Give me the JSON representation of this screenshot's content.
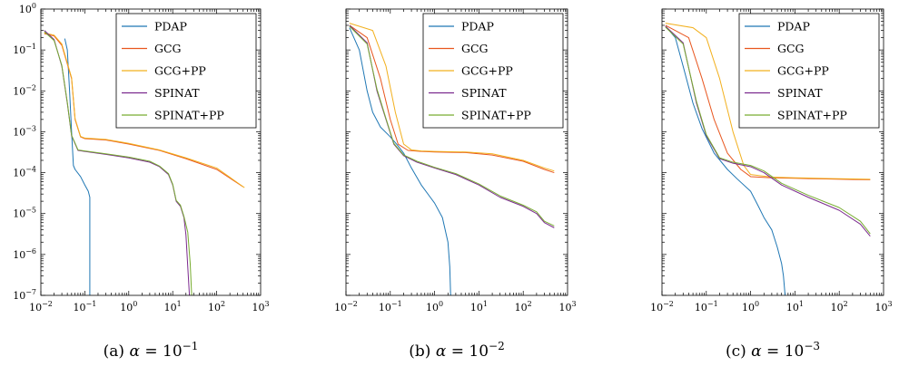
{
  "chart_data": [
    {
      "type": "line",
      "caption": "(a) α = 10⁻¹",
      "caption_parts": [
        "(a) ",
        "α",
        " = 10",
        "−1"
      ],
      "xscale": "log",
      "yscale": "log",
      "xlim": [
        0.01,
        1000
      ],
      "ylim": [
        1e-07,
        1
      ],
      "xticks": [
        {
          "base": "10",
          "exp": "−2"
        },
        {
          "base": "10",
          "exp": "−1"
        },
        {
          "base": "10",
          "exp": "0"
        },
        {
          "base": "10",
          "exp": "1"
        },
        {
          "base": "10",
          "exp": "2"
        },
        {
          "base": "10",
          "exp": "3"
        }
      ],
      "yticks": [
        {
          "base": "10",
          "exp": "0"
        },
        {
          "base": "10",
          "exp": "−1"
        },
        {
          "base": "10",
          "exp": "−2"
        },
        {
          "base": "10",
          "exp": "−3"
        },
        {
          "base": "10",
          "exp": "−4"
        },
        {
          "base": "10",
          "exp": "−5"
        },
        {
          "base": "10",
          "exp": "−6"
        },
        {
          "base": "10",
          "exp": "−7"
        }
      ],
      "legend_position": "top-right",
      "series": [
        {
          "name": "PDAP",
          "color": "#1f77b4",
          "points": [
            [
              0.035,
              0.19
            ],
            [
              0.04,
              0.1
            ],
            [
              0.045,
              0.01
            ],
            [
              0.05,
              0.001
            ],
            [
              0.055,
              0.00015
            ],
            [
              0.06,
              0.00012
            ],
            [
              0.08,
              8e-05
            ],
            [
              0.1,
              5e-05
            ],
            [
              0.12,
              3.5e-05
            ],
            [
              0.13,
              2.5e-05
            ],
            [
              0.13,
              1e-07
            ]
          ]
        },
        {
          "name": "GCG",
          "color": "#e8561f",
          "points": [
            [
              0.012,
              0.25
            ],
            [
              0.02,
              0.22
            ],
            [
              0.03,
              0.13
            ],
            [
              0.05,
              0.02
            ],
            [
              0.06,
              0.002
            ],
            [
              0.08,
              0.00075
            ],
            [
              0.1,
              0.00068
            ],
            [
              0.3,
              0.00063
            ],
            [
              1,
              0.0005
            ],
            [
              5,
              0.00035
            ],
            [
              20,
              0.00022
            ],
            [
              100,
              0.00012
            ],
            [
              400,
              4.5e-05
            ]
          ]
        },
        {
          "name": "GCG+PP",
          "color": "#f2b01e",
          "points": [
            [
              0.012,
              0.26
            ],
            [
              0.02,
              0.23
            ],
            [
              0.03,
              0.14
            ],
            [
              0.05,
              0.021
            ],
            [
              0.06,
              0.0021
            ],
            [
              0.08,
              0.00077
            ],
            [
              0.1,
              0.0007
            ],
            [
              0.3,
              0.00065
            ],
            [
              1,
              0.00052
            ],
            [
              5,
              0.00036
            ],
            [
              20,
              0.00023
            ],
            [
              100,
              0.00013
            ],
            [
              430,
              4.3e-05
            ]
          ]
        },
        {
          "name": "SPINAT",
          "color": "#7b2a8e",
          "points": [
            [
              0.012,
              0.3
            ],
            [
              0.02,
              0.18
            ],
            [
              0.03,
              0.04
            ],
            [
              0.04,
              0.005
            ],
            [
              0.05,
              0.0008
            ],
            [
              0.07,
              0.00035
            ],
            [
              0.1,
              0.00033
            ],
            [
              0.3,
              0.00028
            ],
            [
              1,
              0.00023
            ],
            [
              3,
              0.00018
            ],
            [
              5,
              0.00014
            ],
            [
              8,
              9e-05
            ],
            [
              10,
              5e-05
            ],
            [
              12,
              2e-05
            ],
            [
              15,
              1.5e-05
            ],
            [
              18,
              8e-06
            ],
            [
              20,
              3e-06
            ],
            [
              22,
              5e-07
            ],
            [
              24,
              1e-07
            ]
          ]
        },
        {
          "name": "SPINAT+PP",
          "color": "#77ac30",
          "points": [
            [
              0.012,
              0.28
            ],
            [
              0.02,
              0.17
            ],
            [
              0.03,
              0.042
            ],
            [
              0.04,
              0.0052
            ],
            [
              0.05,
              0.00082
            ],
            [
              0.07,
              0.00036
            ],
            [
              0.1,
              0.00034
            ],
            [
              0.3,
              0.00029
            ],
            [
              1,
              0.00024
            ],
            [
              3,
              0.00019
            ],
            [
              5,
              0.000145
            ],
            [
              8,
              9.5e-05
            ],
            [
              10,
              5.2e-05
            ],
            [
              12,
              2.1e-05
            ],
            [
              15,
              1.6e-05
            ],
            [
              18,
              8.5e-06
            ],
            [
              22,
              3.5e-06
            ],
            [
              25,
              6e-07
            ],
            [
              27,
              1e-07
            ]
          ]
        }
      ]
    },
    {
      "type": "line",
      "caption": "(b) α = 10⁻²",
      "caption_parts": [
        "(b) ",
        "α",
        " = 10",
        "−2"
      ],
      "xscale": "log",
      "yscale": "log",
      "xlim": [
        0.01,
        1000
      ],
      "ylim": [
        1e-07,
        1
      ],
      "xticks": [
        {
          "base": "10",
          "exp": "−2"
        },
        {
          "base": "10",
          "exp": "−1"
        },
        {
          "base": "10",
          "exp": "0"
        },
        {
          "base": "10",
          "exp": "1"
        },
        {
          "base": "10",
          "exp": "2"
        },
        {
          "base": "10",
          "exp": "3"
        }
      ],
      "yticks": [],
      "legend_position": "top-right",
      "series": [
        {
          "name": "PDAP",
          "color": "#1f77b4",
          "points": [
            [
              0.012,
              0.35
            ],
            [
              0.02,
              0.1
            ],
            [
              0.03,
              0.01
            ],
            [
              0.04,
              0.003
            ],
            [
              0.06,
              0.0013
            ],
            [
              0.1,
              0.00075
            ],
            [
              0.15,
              0.00045
            ],
            [
              0.2,
              0.0003
            ],
            [
              0.3,
              0.00013
            ],
            [
              0.5,
              5e-05
            ],
            [
              0.8,
              2.5e-05
            ],
            [
              1,
              1.8e-05
            ],
            [
              1.5,
              8e-06
            ],
            [
              2,
              2e-06
            ],
            [
              2.2,
              5e-07
            ],
            [
              2.3,
              1e-07
            ]
          ]
        },
        {
          "name": "GCG",
          "color": "#e8561f",
          "points": [
            [
              0.012,
              0.4
            ],
            [
              0.03,
              0.2
            ],
            [
              0.06,
              0.02
            ],
            [
              0.1,
              0.002
            ],
            [
              0.15,
              0.0005
            ],
            [
              0.25,
              0.00035
            ],
            [
              0.5,
              0.00033
            ],
            [
              1,
              0.00032
            ],
            [
              5,
              0.00031
            ],
            [
              20,
              0.00027
            ],
            [
              100,
              0.00019
            ],
            [
              300,
              0.00012
            ],
            [
              500,
              0.0001
            ]
          ]
        },
        {
          "name": "GCG+PP",
          "color": "#f2b01e",
          "points": [
            [
              0.012,
              0.45
            ],
            [
              0.04,
              0.3
            ],
            [
              0.08,
              0.04
            ],
            [
              0.13,
              0.003
            ],
            [
              0.2,
              0.0005
            ],
            [
              0.3,
              0.00036
            ],
            [
              0.5,
              0.00034
            ],
            [
              1,
              0.00033
            ],
            [
              5,
              0.00032
            ],
            [
              20,
              0.00029
            ],
            [
              100,
              0.0002
            ],
            [
              300,
              0.00013
            ],
            [
              500,
              0.00011
            ]
          ]
        },
        {
          "name": "SPINAT",
          "color": "#7b2a8e",
          "points": [
            [
              0.012,
              0.4
            ],
            [
              0.03,
              0.15
            ],
            [
              0.05,
              0.01
            ],
            [
              0.08,
              0.002
            ],
            [
              0.12,
              0.0005
            ],
            [
              0.2,
              0.00026
            ],
            [
              0.4,
              0.00018
            ],
            [
              1,
              0.00013
            ],
            [
              3,
              9e-05
            ],
            [
              10,
              5e-05
            ],
            [
              30,
              2.5e-05
            ],
            [
              100,
              1.5e-05
            ],
            [
              200,
              1e-05
            ],
            [
              300,
              6e-06
            ],
            [
              500,
              4.5e-06
            ]
          ]
        },
        {
          "name": "SPINAT+PP",
          "color": "#77ac30",
          "points": [
            [
              0.012,
              0.38
            ],
            [
              0.03,
              0.14
            ],
            [
              0.05,
              0.011
            ],
            [
              0.08,
              0.0021
            ],
            [
              0.12,
              0.00052
            ],
            [
              0.2,
              0.00027
            ],
            [
              0.4,
              0.00019
            ],
            [
              1,
              0.000135
            ],
            [
              3,
              9.5e-05
            ],
            [
              10,
              5.3e-05
            ],
            [
              30,
              2.7e-05
            ],
            [
              100,
              1.6e-05
            ],
            [
              200,
              1.1e-05
            ],
            [
              300,
              6.5e-06
            ],
            [
              500,
              5e-06
            ]
          ]
        }
      ]
    },
    {
      "type": "line",
      "caption": "(c) α = 10⁻³",
      "caption_parts": [
        "(c) ",
        "α",
        " = 10",
        "−3"
      ],
      "xscale": "log",
      "yscale": "log",
      "xlim": [
        0.01,
        1000
      ],
      "ylim": [
        1e-07,
        1
      ],
      "xticks": [
        {
          "base": "10",
          "exp": "−2"
        },
        {
          "base": "10",
          "exp": "−1"
        },
        {
          "base": "10",
          "exp": "0"
        },
        {
          "base": "10",
          "exp": "1"
        },
        {
          "base": "10",
          "exp": "2"
        },
        {
          "base": "10",
          "exp": "3"
        }
      ],
      "yticks": [],
      "legend_position": "top-right",
      "series": [
        {
          "name": "PDAP",
          "color": "#1f77b4",
          "points": [
            [
              0.012,
              0.38
            ],
            [
              0.02,
              0.2
            ],
            [
              0.03,
              0.04
            ],
            [
              0.05,
              0.005
            ],
            [
              0.08,
              0.0012
            ],
            [
              0.15,
              0.0003
            ],
            [
              0.3,
              0.00012
            ],
            [
              0.5,
              7e-05
            ],
            [
              1,
              3.5e-05
            ],
            [
              1.5,
              1.5e-05
            ],
            [
              2,
              8e-06
            ],
            [
              3,
              4e-06
            ],
            [
              4,
              1.5e-06
            ],
            [
              5,
              6e-07
            ],
            [
              5.5,
              3e-07
            ],
            [
              6,
              1e-07
            ]
          ]
        },
        {
          "name": "GCG",
          "color": "#e8561f",
          "points": [
            [
              0.012,
              0.4
            ],
            [
              0.04,
              0.2
            ],
            [
              0.08,
              0.02
            ],
            [
              0.15,
              0.002
            ],
            [
              0.3,
              0.0003
            ],
            [
              0.6,
              0.00012
            ],
            [
              1,
              8e-05
            ],
            [
              3,
              7.5e-05
            ],
            [
              10,
              7.3e-05
            ],
            [
              50,
              7e-05
            ],
            [
              200,
              6.8e-05
            ],
            [
              500,
              6.7e-05
            ]
          ]
        },
        {
          "name": "GCG+PP",
          "color": "#f2b01e",
          "points": [
            [
              0.012,
              0.45
            ],
            [
              0.05,
              0.35
            ],
            [
              0.1,
              0.2
            ],
            [
              0.2,
              0.02
            ],
            [
              0.4,
              0.001
            ],
            [
              0.7,
              0.00015
            ],
            [
              1,
              9e-05
            ],
            [
              3,
              7.8e-05
            ],
            [
              10,
              7.5e-05
            ],
            [
              50,
              7.2e-05
            ],
            [
              200,
              7e-05
            ],
            [
              500,
              6.9e-05
            ]
          ]
        },
        {
          "name": "SPINAT",
          "color": "#7b2a8e",
          "points": [
            [
              0.012,
              0.38
            ],
            [
              0.03,
              0.15
            ],
            [
              0.06,
              0.005
            ],
            [
              0.1,
              0.0008
            ],
            [
              0.2,
              0.00022
            ],
            [
              0.4,
              0.00017
            ],
            [
              1,
              0.00014
            ],
            [
              2,
              0.0001
            ],
            [
              5,
              5e-05
            ],
            [
              20,
              2.5e-05
            ],
            [
              100,
              1.2e-05
            ],
            [
              300,
              5.5e-06
            ],
            [
              500,
              2.8e-06
            ]
          ]
        },
        {
          "name": "SPINAT+PP",
          "color": "#77ac30",
          "points": [
            [
              0.012,
              0.36
            ],
            [
              0.03,
              0.14
            ],
            [
              0.06,
              0.0055
            ],
            [
              0.1,
              0.00085
            ],
            [
              0.2,
              0.00023
            ],
            [
              0.4,
              0.00018
            ],
            [
              1,
              0.00015
            ],
            [
              2,
              0.00011
            ],
            [
              5,
              5.5e-05
            ],
            [
              20,
              2.8e-05
            ],
            [
              100,
              1.4e-05
            ],
            [
              300,
              6.5e-06
            ],
            [
              500,
              3.2e-06
            ]
          ]
        }
      ]
    }
  ]
}
